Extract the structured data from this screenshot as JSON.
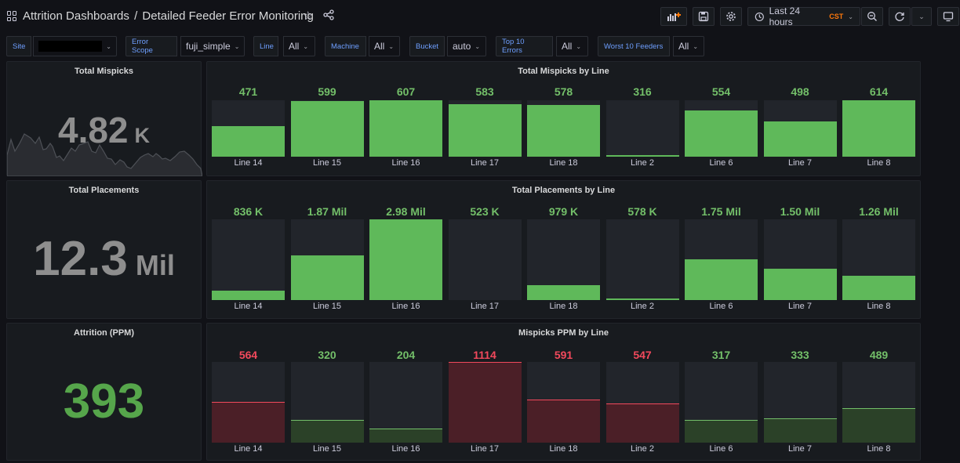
{
  "header": {
    "title_folder": "Attrition Dashboards",
    "title_sep": "/",
    "title_dash": "Detailed Feeder Error Monitoring",
    "time_range": "Last 24 hours",
    "timezone": "CST"
  },
  "filters": [
    {
      "label": "Site",
      "value": ""
    },
    {
      "label": "Error Scope",
      "value": "fuji_simple"
    },
    {
      "label": "Line",
      "value": "All"
    },
    {
      "label": "Machine",
      "value": "All"
    },
    {
      "label": "Bucket",
      "value": "auto"
    },
    {
      "label": "Top 10 Errors",
      "value": "All"
    },
    {
      "label": "Worst 10 Feeders",
      "value": "All"
    }
  ],
  "colors": {
    "green": "#73bf69",
    "green_bar": "#5fb95a",
    "red": "#f2495c",
    "dark_red_fill": "#4b1f27",
    "dark_green_fill": "#2b4128",
    "stat_gray": "#8e8e8e",
    "stat_green": "#56a64b"
  },
  "stats": {
    "mispicks": {
      "title": "Total Mispicks",
      "value": "4.82",
      "unit": "K"
    },
    "placements": {
      "title": "Total Placements",
      "value": "12.3",
      "unit": "Mil"
    },
    "attrition": {
      "title": "Attrition (PPM)",
      "value": "393"
    }
  },
  "chart_data": [
    {
      "type": "bar",
      "title": "Total Mispicks by Line",
      "categories": [
        "Line 14",
        "Line 15",
        "Line 16",
        "Line 17",
        "Line 18",
        "Line 2",
        "Line 6",
        "Line 7",
        "Line 8"
      ],
      "values": [
        471,
        599,
        607,
        583,
        578,
        316,
        554,
        498,
        614
      ],
      "labels": [
        "471",
        "599",
        "607",
        "583",
        "578",
        "316",
        "554",
        "498",
        "614"
      ],
      "level": [
        0.54,
        0.98,
        1.0,
        0.93,
        0.91,
        0.02,
        0.82,
        0.62,
        1.0
      ],
      "status": [
        "ok",
        "ok",
        "ok",
        "ok",
        "ok",
        "ok",
        "ok",
        "ok",
        "ok"
      ]
    },
    {
      "type": "bar",
      "title": "Total Placements by Line",
      "categories": [
        "Line 14",
        "Line 15",
        "Line 16",
        "Line 17",
        "Line 18",
        "Line 2",
        "Line 6",
        "Line 7",
        "Line 8"
      ],
      "values": [
        836000,
        1870000,
        2980000,
        523000,
        979000,
        578000,
        1750000,
        1500000,
        1260000
      ],
      "labels": [
        "836 K",
        "1.87 Mil",
        "2.98 Mil",
        "523 K",
        "979 K",
        "578 K",
        "1.75 Mil",
        "1.50 Mil",
        "1.26 Mil"
      ],
      "level": [
        0.12,
        0.55,
        1.0,
        0.0,
        0.18,
        0.02,
        0.5,
        0.39,
        0.3
      ],
      "status": [
        "ok",
        "ok",
        "ok",
        "ok",
        "ok",
        "ok",
        "ok",
        "ok",
        "ok"
      ]
    },
    {
      "type": "bar",
      "title": "Mispicks PPM by Line",
      "categories": [
        "Line 14",
        "Line 15",
        "Line 16",
        "Line 17",
        "Line 18",
        "Line 2",
        "Line 6",
        "Line 7",
        "Line 8"
      ],
      "values": [
        564,
        320,
        204,
        1114,
        591,
        547,
        317,
        333,
        489
      ],
      "labels": [
        "564",
        "320",
        "204",
        "1114",
        "591",
        "547",
        "317",
        "333",
        "489"
      ],
      "level": [
        0.5,
        0.28,
        0.17,
        1.0,
        0.53,
        0.49,
        0.28,
        0.3,
        0.43
      ],
      "status": [
        "bad",
        "ok",
        "ok",
        "bad",
        "bad",
        "bad",
        "ok",
        "ok",
        "ok"
      ]
    }
  ]
}
